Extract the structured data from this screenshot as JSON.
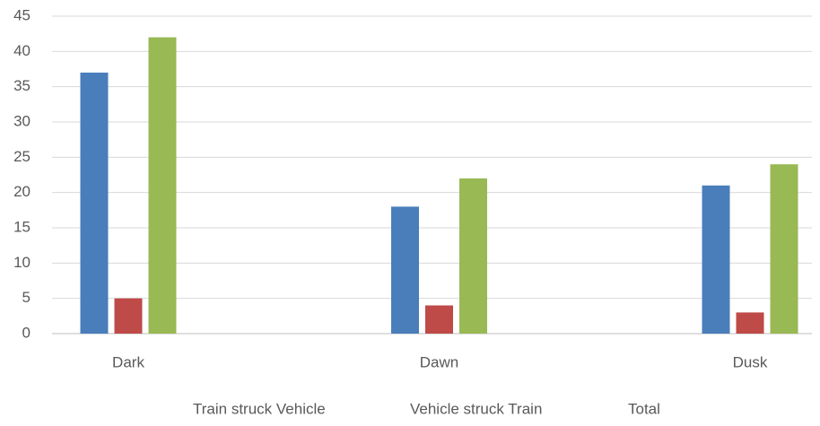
{
  "chart_data": {
    "type": "bar",
    "categories": [
      "Dark",
      "Dawn",
      "Dusk"
    ],
    "series": [
      {
        "name": "Train struck Vehicle",
        "color": "#4a7ebb",
        "values": [
          37,
          18,
          21
        ]
      },
      {
        "name": "Vehicle struck Train",
        "color": "#be4b48",
        "values": [
          5,
          4,
          3
        ]
      },
      {
        "name": "Total",
        "color": "#98b954",
        "values": [
          42,
          22,
          24
        ]
      }
    ],
    "ylim": [
      0,
      45
    ],
    "yticks": [
      0,
      5,
      10,
      15,
      20,
      25,
      30,
      35,
      40,
      45
    ],
    "grid": true,
    "legend": "bottom"
  }
}
